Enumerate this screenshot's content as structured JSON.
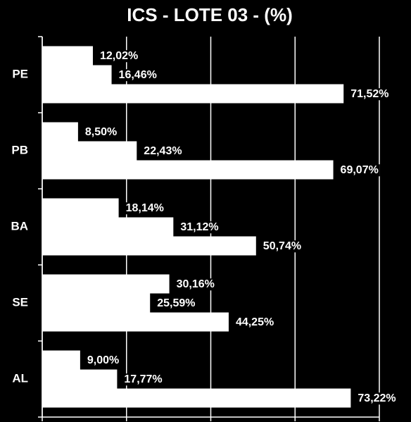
{
  "chart_data": {
    "type": "bar",
    "orientation": "horizontal",
    "title": "ICS - LOTE 03 - (%)",
    "categories": [
      "PE",
      "PB",
      "BA",
      "SE",
      "AL"
    ],
    "series": [
      {
        "color": "#ffffff",
        "values": [
          12.02,
          8.5,
          18.14,
          30.16,
          9.0
        ],
        "value_labels": [
          "12,02%",
          "8,50%",
          "18,14%",
          "30,16%",
          "9,00%"
        ]
      },
      {
        "color": "#ffffff",
        "values": [
          16.46,
          22.43,
          31.12,
          25.59,
          17.77
        ],
        "value_labels": [
          "16,46%",
          "22,43%",
          "31,12%",
          "25,59%",
          "17,77%"
        ]
      },
      {
        "color": "#ffffff",
        "values": [
          71.52,
          69.07,
          50.74,
          44.25,
          73.22
        ],
        "value_labels": [
          "71,52%",
          "69,07%",
          "50,74%",
          "44,25%",
          "73,22%"
        ]
      }
    ],
    "xlim": [
      0,
      80
    ],
    "xticks": [
      0,
      20,
      40,
      60,
      80
    ],
    "grid": true
  }
}
